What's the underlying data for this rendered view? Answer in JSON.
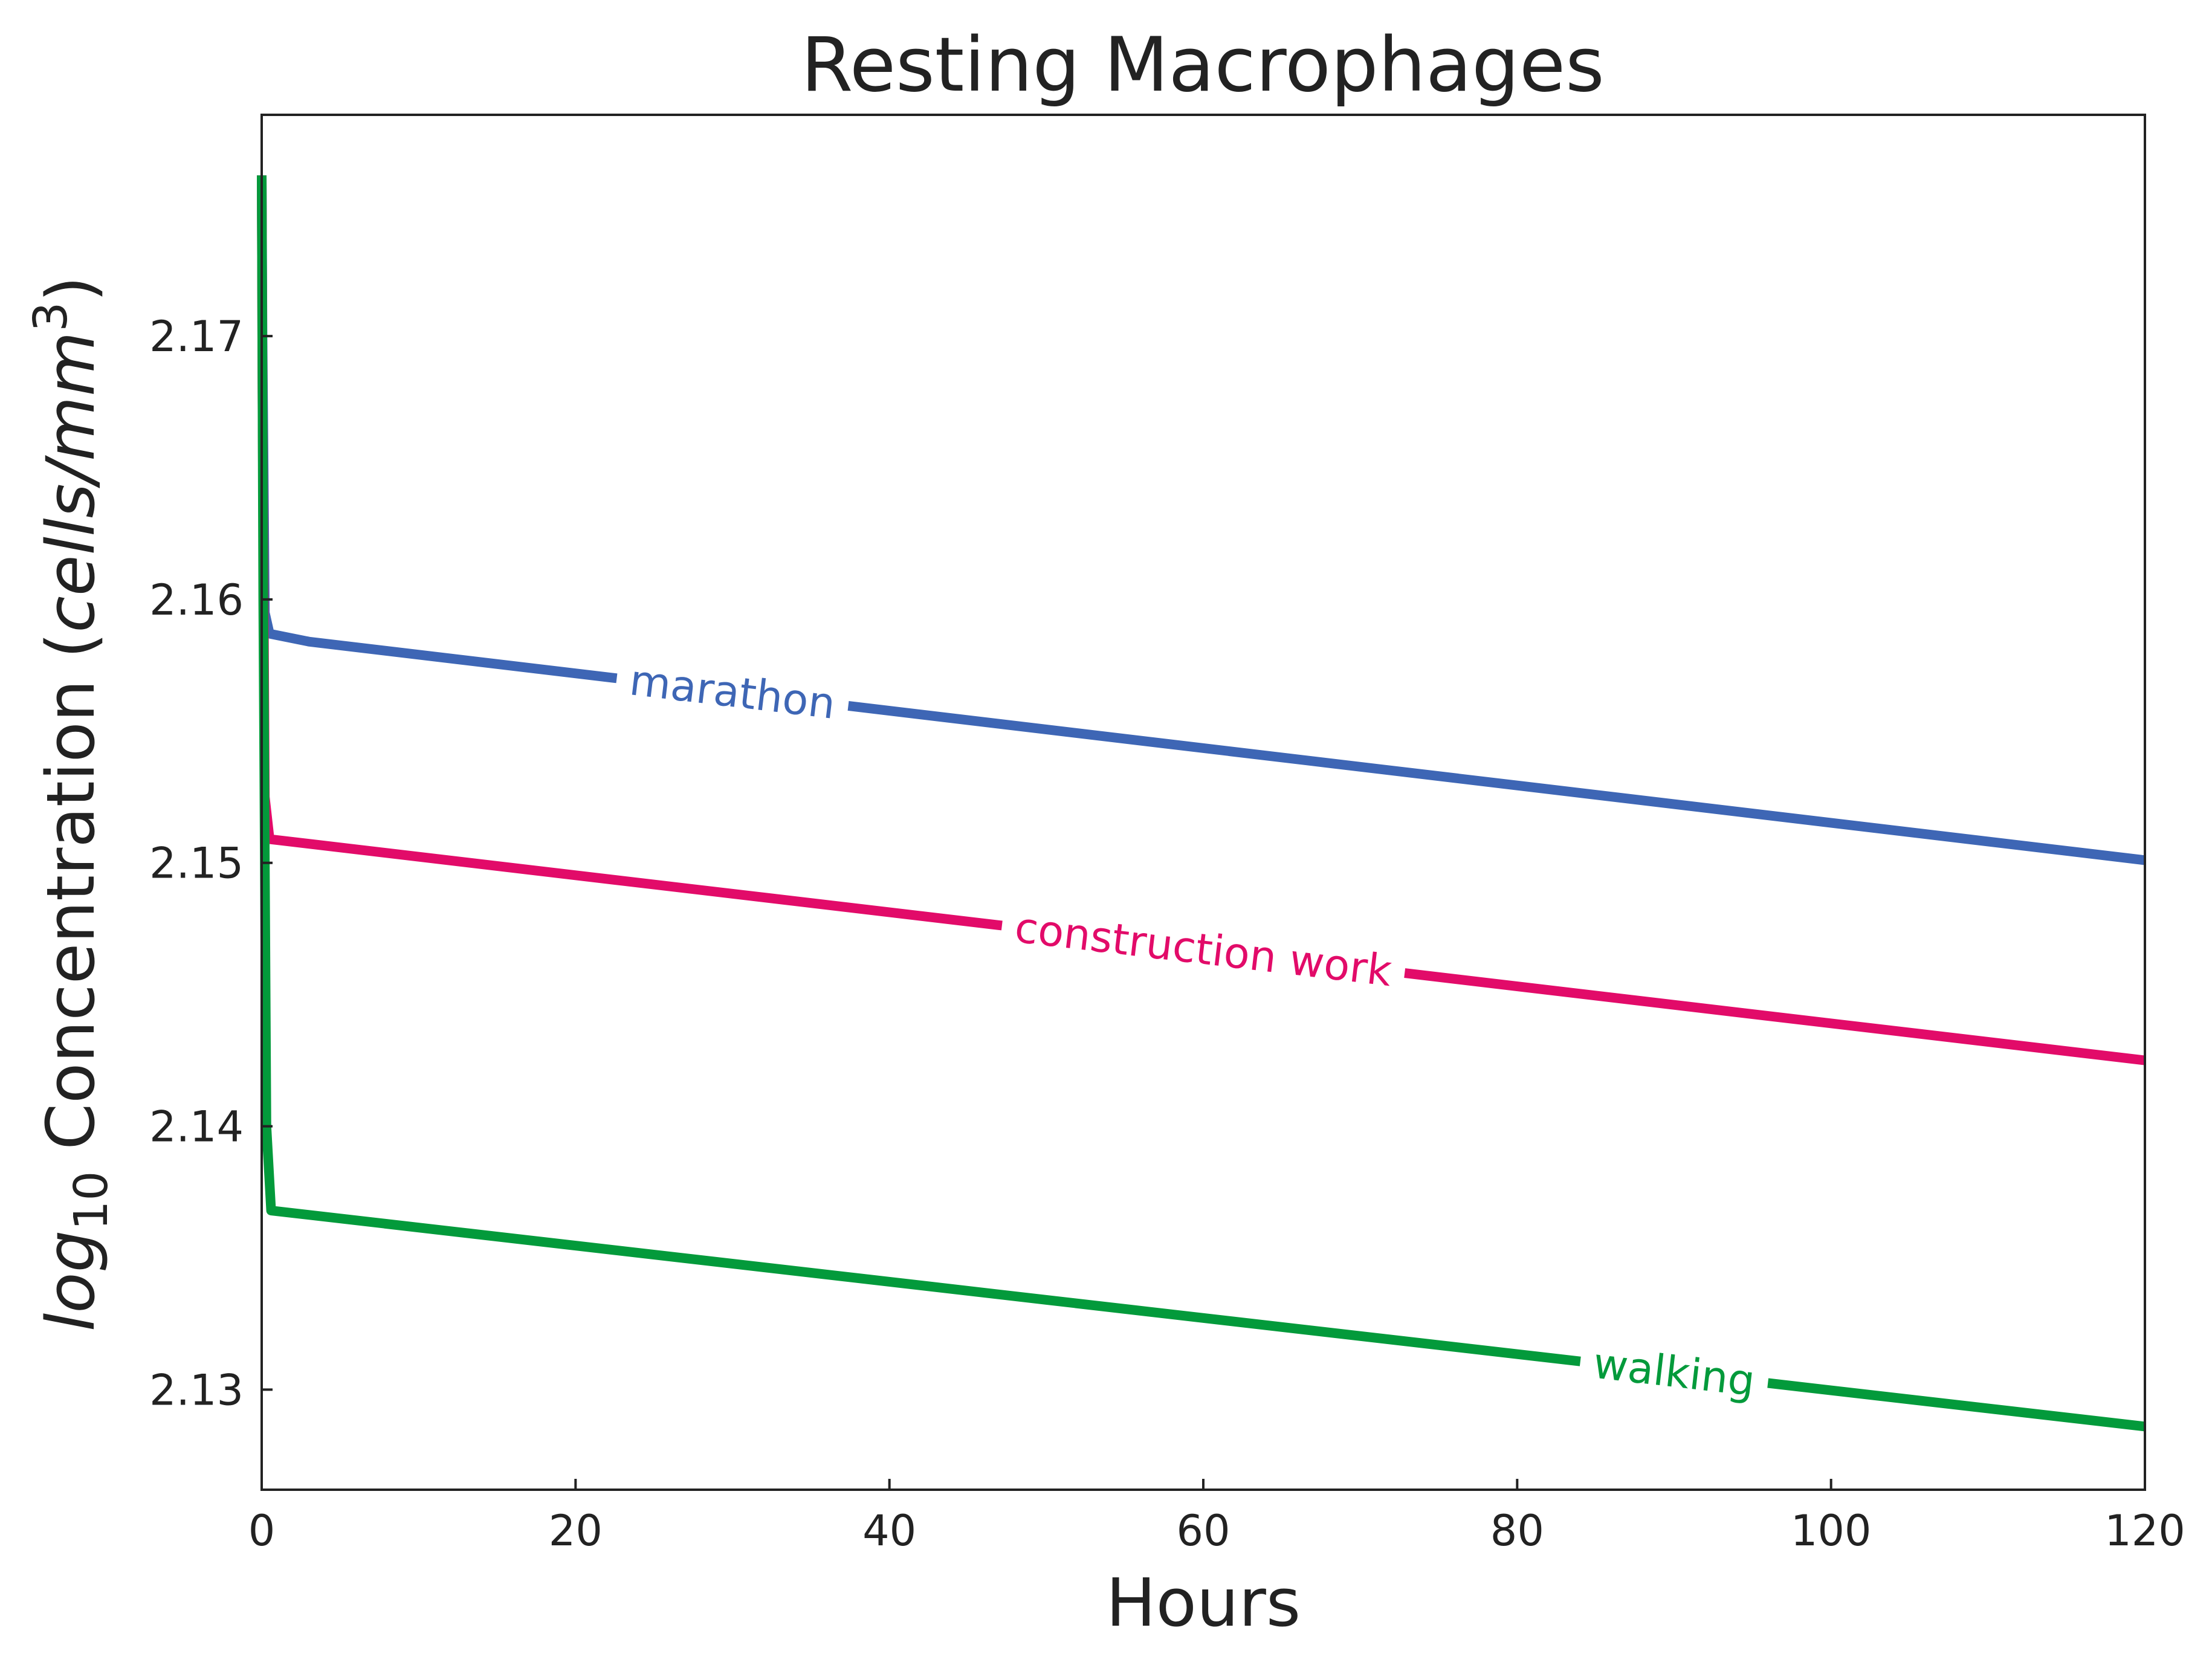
{
  "chart_data": {
    "type": "line",
    "title": "Resting Macrophages",
    "xlabel": "Hours",
    "ylabel": {
      "text_italic_base": "log",
      "text_subscript": "10",
      "text_middle": " Concentration (",
      "text_italic_unit": "cells/mm",
      "text_superscript": "3",
      "text_end": ")"
    },
    "xlim": [
      0,
      120
    ],
    "ylim": [
      2.1262,
      2.1784
    ],
    "x_ticks": [
      0,
      20,
      40,
      60,
      80,
      100,
      120
    ],
    "x_tick_labels": [
      "0",
      "20",
      "40",
      "60",
      "80",
      "100",
      "120"
    ],
    "y_ticks": [
      2.13,
      2.14,
      2.15,
      2.16,
      2.17
    ],
    "y_tick_labels": [
      "2.13",
      "2.14",
      "2.15",
      "2.16",
      "2.17"
    ],
    "grid": false,
    "legend": "inline labels",
    "series": [
      {
        "name": "marathon",
        "color": "#3e66b5",
        "x": [
          0,
          0.05,
          0.2,
          0.5,
          3,
          120
        ],
        "y": [
          2.1761,
          2.17,
          2.1595,
          2.1587,
          2.1584,
          2.1501
        ],
        "label_at_x": 30
      },
      {
        "name": "construction work",
        "color": "#e20b69",
        "x": [
          0,
          0.05,
          0.2,
          0.5,
          120
        ],
        "y": [
          2.1761,
          2.168,
          2.1525,
          2.1509,
          2.1425
        ],
        "label_at_x": 60
      },
      {
        "name": "walking",
        "color": "#039a3b",
        "x": [
          0,
          0.1,
          0.3,
          0.6,
          120
        ],
        "y": [
          2.1761,
          2.16,
          2.14,
          2.1368,
          2.1286
        ],
        "label_at_x": 90
      }
    ]
  }
}
